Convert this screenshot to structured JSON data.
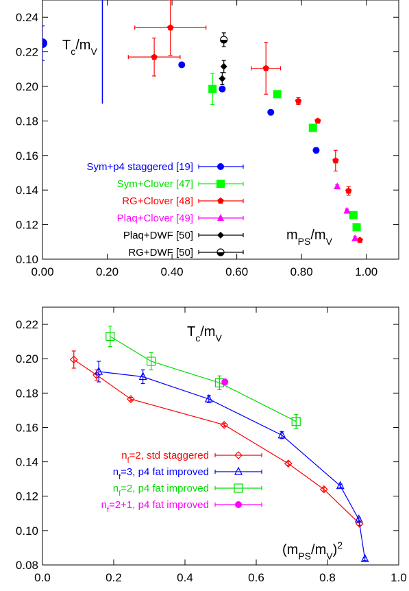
{
  "chart_data": [
    {
      "type": "scatter",
      "xlim": [
        0.0,
        1.1
      ],
      "ylim": [
        0.1,
        0.25
      ],
      "xticks": [
        "0.00",
        "0.20",
        "0.40",
        "0.60",
        "0.80",
        "1.00"
      ],
      "yticks": [
        "0.10",
        "0.12",
        "0.14",
        "0.16",
        "0.18",
        "0.20",
        "0.22",
        "0.24"
      ],
      "ylabel_main": "T",
      "ylabel_sub": "c",
      "ylabel_tail": "/m",
      "ylabel_sub2": "V",
      "xlabel_main": "m",
      "xlabel_sub": "PS",
      "xlabel_tail": "/m",
      "xlabel_sub2": "V",
      "grid": false,
      "legend_position": "bottom-left",
      "series": [
        {
          "name": "Sym+p4 staggered [19]",
          "color": "#0000ff",
          "marker": "circle",
          "x": [
            0.43,
            0.555,
            0.705,
            0.845
          ],
          "y": [
            0.2125,
            0.1985,
            0.185,
            0.163
          ],
          "xerr": [
            0.006,
            0.008,
            0.004,
            0.006
          ],
          "yerr": [
            0.001,
            0.001,
            0.001,
            0.0015
          ]
        },
        {
          "name": "Sym+Clover [47]",
          "color": "#00ff00",
          "marker": "square",
          "x": [
            0.525,
            0.725,
            0.835,
            0.96,
            0.97
          ],
          "y": [
            0.1985,
            0.1955,
            0.176,
            0.1255,
            0.1185
          ],
          "xerr": [
            0.006,
            0.005,
            0.005,
            0.004,
            0.004
          ],
          "yerr": [
            0.009,
            0.001,
            0.001,
            0.001,
            0.001
          ]
        },
        {
          "name": "RG+Clover [48]",
          "color": "#ff0000",
          "marker": "pentagon",
          "x": [
            0.395,
            0.345,
            0.69,
            0.79,
            0.85,
            0.905,
            0.945,
            0.98
          ],
          "y": [
            0.234,
            0.217,
            0.2105,
            0.1915,
            0.18,
            0.157,
            0.1395,
            0.111
          ],
          "xerr": [
            0.11,
            0.08,
            0.045,
            0.006,
            0.004,
            0.006,
            0.006,
            0.004
          ],
          "yerr": [
            0.016,
            0.011,
            0.015,
            0.002,
            0.001,
            0.006,
            0.0025,
            0.001
          ]
        },
        {
          "name": "Plaq+Clover [49]",
          "color": "#ff00ff",
          "marker": "triangle",
          "x": [
            0.91,
            0.94,
            0.965
          ],
          "y": [
            0.142,
            0.128,
            0.112
          ],
          "xerr": [
            0.003,
            0.003,
            0.003
          ],
          "yerr": [
            0.001,
            0.001,
            0.001
          ]
        },
        {
          "name": "Plaq+DWF [50]",
          "color": "#000000",
          "marker": "diamond",
          "x": [
            0.56,
            0.555
          ],
          "y": [
            0.2115,
            0.2045
          ],
          "xerr": [
            0.004,
            0.004
          ],
          "yerr": [
            0.0035,
            0.0035
          ]
        },
        {
          "name": "RG+DWF [50]",
          "color": "#000000",
          "marker": "halfcircle",
          "x": [
            0.56
          ],
          "y": [
            0.227
          ],
          "xerr": [
            0.004
          ],
          "yerr": [
            0.004
          ]
        },
        {
          "name": "",
          "color": "#0000ff",
          "marker": "bigcircle",
          "x": [
            0.0
          ],
          "y": [
            0.225
          ],
          "xerr": [
            0.0
          ],
          "yerr": [
            0.01
          ],
          "noLegend": true
        }
      ],
      "vline": {
        "x": 0.185,
        "y0": 0.19,
        "y1": 0.25,
        "color": "#0000ff"
      }
    },
    {
      "type": "line",
      "xlim": [
        0.0,
        1.0
      ],
      "ylim": [
        0.08,
        0.23
      ],
      "xticks": [
        "0.0",
        "0.2",
        "0.4",
        "0.6",
        "0.8",
        "1.0"
      ],
      "yticks": [
        "0.08",
        "0.10",
        "0.12",
        "0.14",
        "0.16",
        "0.18",
        "0.20",
        "0.22"
      ],
      "ylabel_main": "T",
      "ylabel_sub": "c",
      "ylabel_tail": "/m",
      "ylabel_sub2": "V",
      "xlabel_main": "(m",
      "xlabel_sub": "PS",
      "xlabel_tail": "/m",
      "xlabel_sub2": "V",
      "xlabel_close": ")",
      "xlabel_sup": "2",
      "grid": false,
      "legend_position": "bottom-left",
      "series": [
        {
          "name_pre": "n",
          "name_sub": "f",
          "name_post": "=2, std staggered",
          "color": "#ff0000",
          "marker": "diamond-open",
          "line": true,
          "x": [
            0.088,
            0.152,
            0.248,
            0.51,
            0.69,
            0.79,
            0.89
          ],
          "y": [
            0.1995,
            0.1905,
            0.1765,
            0.1615,
            0.139,
            0.124,
            0.104
          ],
          "yerr": [
            0.005,
            0.003,
            0.001,
            0.001,
            0.001,
            0.001,
            0.001
          ]
        },
        {
          "name_pre": "n",
          "name_sub": "f",
          "name_post": "=3, p4 fat improved",
          "color": "#0000ff",
          "marker": "triangle-open",
          "line": true,
          "x": [
            0.158,
            0.282,
            0.467,
            0.672,
            0.836,
            0.888,
            0.905
          ],
          "y": [
            0.1925,
            0.1895,
            0.1765,
            0.1555,
            0.126,
            0.1065,
            0.0835
          ],
          "yerr": [
            0.006,
            0.004,
            0.002,
            0.002,
            0.001,
            0.001,
            0.001
          ]
        },
        {
          "name_pre": "n",
          "name_sub": "f",
          "name_post": "=2, p4 fat improved",
          "color": "#00dd00",
          "marker": "square-open",
          "line": true,
          "x": [
            0.19,
            0.305,
            0.497,
            0.712
          ],
          "y": [
            0.213,
            0.1985,
            0.186,
            0.1635
          ],
          "yerr": [
            0.006,
            0.005,
            0.004,
            0.004
          ]
        },
        {
          "name_pre": "n",
          "name_sub": "f",
          "name_post": "=2+1, p4 fat improved",
          "color": "#ff00ff",
          "marker": "circle",
          "line": false,
          "x": [
            0.512
          ],
          "y": [
            0.1865
          ],
          "yerr": [
            0.0005
          ]
        }
      ]
    }
  ]
}
